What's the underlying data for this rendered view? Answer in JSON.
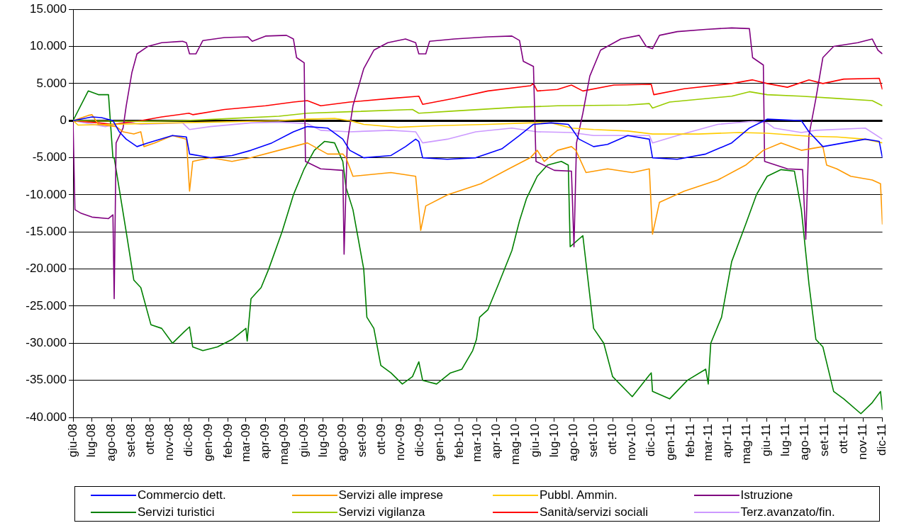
{
  "chart_data": {
    "type": "line",
    "ylim": [
      -40000,
      15000
    ],
    "yticks": [
      {
        "value": -40000,
        "label": "-40.000"
      },
      {
        "value": -35000,
        "label": "-35.000"
      },
      {
        "value": -30000,
        "label": "-30.000"
      },
      {
        "value": -25000,
        "label": "-25.000"
      },
      {
        "value": -20000,
        "label": "-20.000"
      },
      {
        "value": -15000,
        "label": "-15.000"
      },
      {
        "value": -10000,
        "label": "-10.000"
      },
      {
        "value": -5000,
        "label": "-5.000"
      },
      {
        "value": 0,
        "label": "0"
      },
      {
        "value": 5000,
        "label": "5.000"
      },
      {
        "value": 10000,
        "label": "10.000"
      },
      {
        "value": 15000,
        "label": "15.000"
      }
    ],
    "xlim": [
      "2008-06-01",
      "2011-12-01"
    ],
    "xticks": [
      {
        "value": "2008-06-01",
        "label": "giu-08"
      },
      {
        "value": "2008-07-01",
        "label": "lug-08"
      },
      {
        "value": "2008-08-01",
        "label": "ago-08"
      },
      {
        "value": "2008-09-01",
        "label": "set-08"
      },
      {
        "value": "2008-10-01",
        "label": "ott-08"
      },
      {
        "value": "2008-11-01",
        "label": "nov-08"
      },
      {
        "value": "2008-12-01",
        "label": "dic-08"
      },
      {
        "value": "2009-01-01",
        "label": "gen-09"
      },
      {
        "value": "2009-02-01",
        "label": "feb-09"
      },
      {
        "value": "2009-03-01",
        "label": "mar-09"
      },
      {
        "value": "2009-04-01",
        "label": "apr-09"
      },
      {
        "value": "2009-05-01",
        "label": "mag-09"
      },
      {
        "value": "2009-06-01",
        "label": "giu-09"
      },
      {
        "value": "2009-07-01",
        "label": "lug-09"
      },
      {
        "value": "2009-08-01",
        "label": "ago-09"
      },
      {
        "value": "2009-09-01",
        "label": "set-09"
      },
      {
        "value": "2009-10-01",
        "label": "ott-09"
      },
      {
        "value": "2009-11-01",
        "label": "nov-09"
      },
      {
        "value": "2009-12-01",
        "label": "dic-09"
      },
      {
        "value": "2010-01-01",
        "label": "gen-10"
      },
      {
        "value": "2010-02-01",
        "label": "feb-10"
      },
      {
        "value": "2010-03-01",
        "label": "mar-10"
      },
      {
        "value": "2010-04-01",
        "label": "apr-10"
      },
      {
        "value": "2010-05-01",
        "label": "mag-10"
      },
      {
        "value": "2010-06-01",
        "label": "giu-10"
      },
      {
        "value": "2010-07-01",
        "label": "lug-10"
      },
      {
        "value": "2010-08-01",
        "label": "ago-10"
      },
      {
        "value": "2010-09-01",
        "label": "set-10"
      },
      {
        "value": "2010-10-01",
        "label": "ott-10"
      },
      {
        "value": "2010-11-01",
        "label": "nov-10"
      },
      {
        "value": "2010-12-01",
        "label": "dic-10"
      },
      {
        "value": "2011-01-01",
        "label": "gen-11"
      },
      {
        "value": "2011-02-01",
        "label": "feb-11"
      },
      {
        "value": "2011-03-01",
        "label": "mar-11"
      },
      {
        "value": "2011-04-01",
        "label": "apr-11"
      },
      {
        "value": "2011-05-01",
        "label": "mag-11"
      },
      {
        "value": "2011-06-01",
        "label": "giu-11"
      },
      {
        "value": "2011-07-01",
        "label": "lug-11"
      },
      {
        "value": "2011-08-01",
        "label": "ago-11"
      },
      {
        "value": "2011-09-01",
        "label": "set-11"
      },
      {
        "value": "2011-10-01",
        "label": "ott-11"
      },
      {
        "value": "2011-11-01",
        "label": "nov-11"
      },
      {
        "value": "2011-12-01",
        "label": "dic-11"
      }
    ],
    "grid": "y",
    "legend": "bottom",
    "marker": "none",
    "line_style": "solid",
    "series": [
      {
        "name": "Commercio dett.",
        "color": "#0000ff",
        "x": [
          "2008-06-01",
          "2008-07-01",
          "2008-07-16",
          "2008-08-03",
          "2008-08-13",
          "2008-08-24",
          "2008-09-10",
          "2008-09-27",
          "2008-11-05",
          "2008-11-27",
          "2008-12-02",
          "2009-01-04",
          "2009-02-07",
          "2009-03-09",
          "2009-04-11",
          "2009-05-15",
          "2009-06-06",
          "2009-07-08",
          "2009-08-01",
          "2009-08-12",
          "2009-09-03",
          "2009-10-16",
          "2009-11-08",
          "2009-11-24",
          "2009-11-29",
          "2009-12-05",
          "2010-01-13",
          "2010-02-27",
          "2010-04-09",
          "2010-05-07",
          "2010-05-29",
          "2010-06-26",
          "2010-07-23",
          "2010-07-28",
          "2010-08-09",
          "2010-09-01",
          "2010-09-23",
          "2010-10-25",
          "2010-11-28",
          "2010-12-03",
          "2011-01-11",
          "2011-02-25",
          "2011-04-07",
          "2011-05-05",
          "2011-06-02",
          "2011-07-26",
          "2011-08-07",
          "2011-08-18",
          "2011-08-29",
          "2011-10-01",
          "2011-11-04",
          "2011-11-26",
          "2011-12-01"
        ],
        "values": [
          0,
          500,
          400,
          0,
          -1500,
          -2500,
          -3500,
          -3000,
          -2000,
          -2200,
          -4500,
          -5000,
          -4700,
          -4000,
          -3000,
          -1500,
          -800,
          -1000,
          -2500,
          -4000,
          -5000,
          -4700,
          -3500,
          -2500,
          -2800,
          -5000,
          -5200,
          -5000,
          -3800,
          -2000,
          -500,
          -300,
          -500,
          -1000,
          -2500,
          -3500,
          -3200,
          -2000,
          -2500,
          -5000,
          -5200,
          -4500,
          -3000,
          -1000,
          200,
          0,
          -1500,
          -2500,
          -3500,
          -3000,
          -2500,
          -2800,
          -5000
        ]
      },
      {
        "name": "Servizi alle imprese",
        "color": "#ff9900",
        "x": [
          "2008-06-01",
          "2008-06-25",
          "2008-07-01",
          "2008-07-11",
          "2008-08-08",
          "2008-08-19",
          "2008-09-05",
          "2008-09-16",
          "2008-09-21",
          "2008-10-08",
          "2008-11-05",
          "2008-11-27",
          "2008-12-02",
          "2008-12-07",
          "2009-01-04",
          "2009-02-07",
          "2009-03-09",
          "2009-04-22",
          "2009-06-06",
          "2009-07-08",
          "2009-08-01",
          "2009-08-06",
          "2009-08-17",
          "2009-10-16",
          "2009-11-24",
          "2009-12-02",
          "2009-12-10",
          "2010-01-13",
          "2010-03-07",
          "2010-04-20",
          "2010-05-24",
          "2010-06-04",
          "2010-06-15",
          "2010-07-06",
          "2010-07-28",
          "2010-08-04",
          "2010-08-20",
          "2010-09-23",
          "2010-11-01",
          "2010-11-28",
          "2010-12-03",
          "2010-12-14",
          "2011-01-22",
          "2011-03-16",
          "2011-04-29",
          "2011-05-27",
          "2011-06-24",
          "2011-07-26",
          "2011-08-29",
          "2011-09-04",
          "2011-09-20",
          "2011-10-12",
          "2011-11-15",
          "2011-11-28",
          "2011-12-01"
        ],
        "values": [
          0,
          700,
          800,
          -500,
          -800,
          -1500,
          -1800,
          -1500,
          -3500,
          -3000,
          -2000,
          -2500,
          -9500,
          -5500,
          -5000,
          -5500,
          -5000,
          -4000,
          -3000,
          -4500,
          -4500,
          -5000,
          -7500,
          -7000,
          -7500,
          -14800,
          -11500,
          -10000,
          -8500,
          -6500,
          -5000,
          -4000,
          -5500,
          -4000,
          -3500,
          -4000,
          -7000,
          -6500,
          -7000,
          -6500,
          -15300,
          -11000,
          -9500,
          -8000,
          -6000,
          -4000,
          -3000,
          -4000,
          -3500,
          -6000,
          -6500,
          -7500,
          -8000,
          -8500,
          -14000
        ]
      },
      {
        "name": "Pubbl. Ammin.",
        "color": "#ffcc00",
        "x": [
          "2008-06-01",
          "2008-06-09",
          "2008-08-03",
          "2008-09-16",
          "2009-01-04",
          "2009-04-22",
          "2009-06-06",
          "2009-07-19",
          "2009-08-12",
          "2009-09-03",
          "2009-10-27",
          "2009-12-21",
          "2010-03-18",
          "2010-05-24",
          "2010-06-26",
          "2010-07-28",
          "2010-09-01",
          "2010-10-25",
          "2010-12-03",
          "2011-02-14",
          "2011-04-18",
          "2011-06-02",
          "2011-08-07",
          "2011-09-20",
          "2011-11-04",
          "2011-12-01"
        ],
        "values": [
          0,
          -600,
          -500,
          -400,
          -200,
          0,
          200,
          300,
          0,
          -500,
          -900,
          -700,
          -500,
          -300,
          -300,
          -1000,
          -1200,
          -1400,
          -1800,
          -1800,
          -1600,
          -1700,
          -2100,
          -2200,
          -2500,
          -3000
        ]
      },
      {
        "name": "Istruzione",
        "color": "#800080",
        "x": [
          "2008-06-01",
          "2008-06-04",
          "2008-06-14",
          "2008-07-01",
          "2008-07-27",
          "2008-08-03",
          "2008-08-05",
          "2008-08-08",
          "2008-08-19",
          "2008-08-24",
          "2008-09-02",
          "2008-09-10",
          "2008-09-27",
          "2008-10-19",
          "2008-11-21",
          "2008-11-27",
          "2008-12-02",
          "2008-12-12",
          "2008-12-23",
          "2009-01-26",
          "2009-03-04",
          "2009-03-11",
          "2009-04-01",
          "2009-05-04",
          "2009-05-15",
          "2009-05-20",
          "2009-06-01",
          "2009-06-03",
          "2009-06-27",
          "2009-08-01",
          "2009-08-03",
          "2009-08-08",
          "2009-08-17",
          "2009-09-03",
          "2009-09-19",
          "2009-10-11",
          "2009-11-08",
          "2009-11-24",
          "2009-11-29",
          "2009-12-10",
          "2009-12-16",
          "2010-01-24",
          "2010-03-18",
          "2010-04-25",
          "2010-05-07",
          "2010-05-13",
          "2010-05-29",
          "2010-06-02",
          "2010-07-01",
          "2010-07-28",
          "2010-08-01",
          "2010-08-05",
          "2010-08-15",
          "2010-08-26",
          "2010-09-12",
          "2010-10-14",
          "2010-11-12",
          "2010-11-23",
          "2010-12-03",
          "2010-12-14",
          "2011-01-11",
          "2011-02-25",
          "2011-04-07",
          "2011-05-05",
          "2011-05-10",
          "2011-05-27",
          "2011-05-29",
          "2011-07-04",
          "2011-07-28",
          "2011-08-02",
          "2011-08-07",
          "2011-08-18",
          "2011-08-29",
          "2011-09-15",
          "2011-10-23",
          "2011-11-15",
          "2011-11-24",
          "2011-12-01"
        ],
        "values": [
          0,
          -12000,
          -12500,
          -13000,
          -13200,
          -12700,
          -24000,
          -3000,
          -1000,
          2000,
          6500,
          9000,
          10000,
          10500,
          10700,
          10500,
          9000,
          9000,
          10800,
          11200,
          11300,
          10700,
          11400,
          11500,
          11000,
          8500,
          7800,
          -5500,
          -6500,
          -6700,
          -18000,
          -3000,
          2000,
          7000,
          9500,
          10500,
          11000,
          10500,
          9000,
          9000,
          10700,
          11000,
          11300,
          11400,
          10800,
          8000,
          7300,
          -5500,
          -6700,
          -6800,
          -17000,
          -3000,
          1000,
          6000,
          9500,
          11000,
          11500,
          10000,
          9700,
          11500,
          12000,
          12300,
          12500,
          12400,
          8500,
          7500,
          -5500,
          -6500,
          -6600,
          -16000,
          -2000,
          3000,
          8500,
          10000,
          10500,
          11000,
          9500,
          9000
        ]
      },
      {
        "name": "Servizi turistici",
        "color": "#008000",
        "x": [
          "2008-06-01",
          "2008-06-25",
          "2008-07-11",
          "2008-07-27",
          "2008-08-03",
          "2008-08-05",
          "2008-08-24",
          "2008-09-05",
          "2008-09-16",
          "2008-10-02",
          "2008-10-19",
          "2008-11-05",
          "2008-11-23",
          "2008-12-02",
          "2008-12-07",
          "2008-12-23",
          "2009-01-15",
          "2009-02-07",
          "2009-03-01",
          "2009-03-03",
          "2009-03-09",
          "2009-03-25",
          "2009-04-06",
          "2009-04-27",
          "2009-05-15",
          "2009-06-01",
          "2009-06-17",
          "2009-07-03",
          "2009-07-19",
          "2009-08-01",
          "2009-08-06",
          "2009-08-17",
          "2009-09-03",
          "2009-09-08",
          "2009-09-19",
          "2009-09-30",
          "2009-10-16",
          "2009-11-03",
          "2009-11-19",
          "2009-11-29",
          "2009-12-05",
          "2009-12-27",
          "2010-01-18",
          "2010-02-05",
          "2010-02-22",
          "2010-02-28",
          "2010-03-05",
          "2010-03-18",
          "2010-04-04",
          "2010-04-25",
          "2010-05-07",
          "2010-05-18",
          "2010-06-04",
          "2010-06-20",
          "2010-07-12",
          "2010-07-23",
          "2010-07-26",
          "2010-08-15",
          "2010-09-01",
          "2010-09-17",
          "2010-10-01",
          "2010-11-01",
          "2010-11-28",
          "2010-12-01",
          "2010-12-03",
          "2010-12-30",
          "2011-01-27",
          "2011-02-25",
          "2011-03-01",
          "2011-03-05",
          "2011-03-22",
          "2011-04-07",
          "2011-04-29",
          "2011-05-16",
          "2011-06-02",
          "2011-06-24",
          "2011-07-15",
          "2011-07-26",
          "2011-08-07",
          "2011-08-18",
          "2011-08-29",
          "2011-09-15",
          "2011-10-01",
          "2011-10-28",
          "2011-11-15",
          "2011-11-28",
          "2011-12-01"
        ],
        "values": [
          0,
          4000,
          3500,
          3500,
          -5000,
          -5000,
          -15000,
          -21500,
          -22500,
          -27500,
          -28000,
          -30000,
          -28500,
          -27800,
          -30500,
          -31000,
          -30500,
          -29500,
          -28000,
          -29700,
          -24000,
          -22500,
          -20000,
          -15000,
          -10000,
          -6500,
          -4000,
          -2800,
          -3000,
          -5500,
          -9000,
          -12000,
          -20000,
          -26500,
          -28000,
          -33000,
          -34000,
          -35500,
          -34500,
          -32500,
          -35000,
          -35500,
          -34000,
          -33500,
          -31000,
          -29500,
          -26500,
          -25500,
          -22000,
          -17500,
          -13500,
          -10500,
          -7500,
          -6000,
          -5500,
          -6000,
          -17000,
          -15500,
          -28000,
          -30000,
          -34500,
          -37200,
          -34300,
          -34000,
          -36500,
          -37500,
          -35000,
          -33500,
          -35500,
          -30000,
          -26500,
          -19000,
          -14000,
          -10000,
          -7500,
          -6600,
          -6800,
          -12000,
          -22000,
          -29500,
          -30500,
          -36500,
          -37500,
          -39500,
          -38000,
          -36500,
          -39000
        ]
      },
      {
        "name": "Servizi vigilanza",
        "color": "#99cc00",
        "x": [
          "2008-06-01",
          "2008-09-16",
          "2008-11-21",
          "2009-02-07",
          "2009-04-22",
          "2009-06-06",
          "2009-08-12",
          "2009-11-19",
          "2009-11-29",
          "2010-01-24",
          "2010-05-02",
          "2010-07-06",
          "2010-10-25",
          "2010-11-28",
          "2010-12-03",
          "2010-12-30",
          "2011-04-07",
          "2011-05-05",
          "2011-06-02",
          "2011-07-26",
          "2011-09-20",
          "2011-11-15",
          "2011-12-01"
        ],
        "values": [
          0,
          -100,
          0,
          300,
          600,
          1000,
          1200,
          1500,
          1000,
          1300,
          1800,
          2000,
          2100,
          2300,
          1700,
          2500,
          3300,
          3900,
          3500,
          3300,
          3000,
          2700,
          2000
        ]
      },
      {
        "name": "Sanità/servizi sociali",
        "color": "#ff0000",
        "x": [
          "2008-06-01",
          "2008-07-11",
          "2008-08-03",
          "2008-09-16",
          "2008-10-19",
          "2008-12-01",
          "2008-12-07",
          "2009-01-26",
          "2009-04-01",
          "2009-05-15",
          "2009-06-06",
          "2009-06-27",
          "2009-08-12",
          "2009-10-16",
          "2009-11-29",
          "2009-12-05",
          "2010-01-24",
          "2010-03-18",
          "2010-05-24",
          "2010-05-29",
          "2010-06-04",
          "2010-07-06",
          "2010-07-28",
          "2010-08-15",
          "2010-10-03",
          "2010-12-01",
          "2010-12-05",
          "2011-01-22",
          "2011-04-07",
          "2011-05-10",
          "2011-06-02",
          "2011-07-04",
          "2011-08-07",
          "2011-08-29",
          "2011-10-01",
          "2011-11-26",
          "2011-12-01"
        ],
        "values": [
          0,
          -300,
          -500,
          0,
          500,
          1000,
          800,
          1500,
          2000,
          2500,
          2700,
          2000,
          2500,
          3000,
          3300,
          2200,
          3000,
          4000,
          4700,
          5000,
          4000,
          4200,
          4800,
          4000,
          4800,
          4900,
          3500,
          4300,
          5000,
          5500,
          5000,
          4500,
          5500,
          5000,
          5600,
          5700,
          4200
        ]
      },
      {
        "name": "Terz.avanzato/fin.",
        "color": "#cc99ff",
        "x": [
          "2008-06-01",
          "2008-07-22",
          "2008-08-24",
          "2008-09-16",
          "2008-11-21",
          "2008-12-02",
          "2009-01-04",
          "2009-03-09",
          "2009-04-22",
          "2009-05-15",
          "2009-06-06",
          "2009-06-27",
          "2009-08-12",
          "2009-10-16",
          "2009-11-24",
          "2009-12-05",
          "2010-01-13",
          "2010-02-27",
          "2010-04-25",
          "2010-06-04",
          "2010-07-28",
          "2010-09-01",
          "2010-11-28",
          "2010-12-03",
          "2011-01-11",
          "2011-03-16",
          "2011-05-10",
          "2011-06-02",
          "2011-06-13",
          "2011-07-26",
          "2011-08-18",
          "2011-11-04",
          "2011-12-01"
        ],
        "values": [
          0,
          -800,
          -200,
          -500,
          -300,
          -1200,
          -800,
          -300,
          -200,
          -300,
          -400,
          -1300,
          -1500,
          -1300,
          -1500,
          -3000,
          -2500,
          -1500,
          -1000,
          -1500,
          -1600,
          -2000,
          -2000,
          -3000,
          -2000,
          -500,
          -100,
          -300,
          -1000,
          -1600,
          -1300,
          -1000,
          -2500
        ]
      }
    ]
  }
}
